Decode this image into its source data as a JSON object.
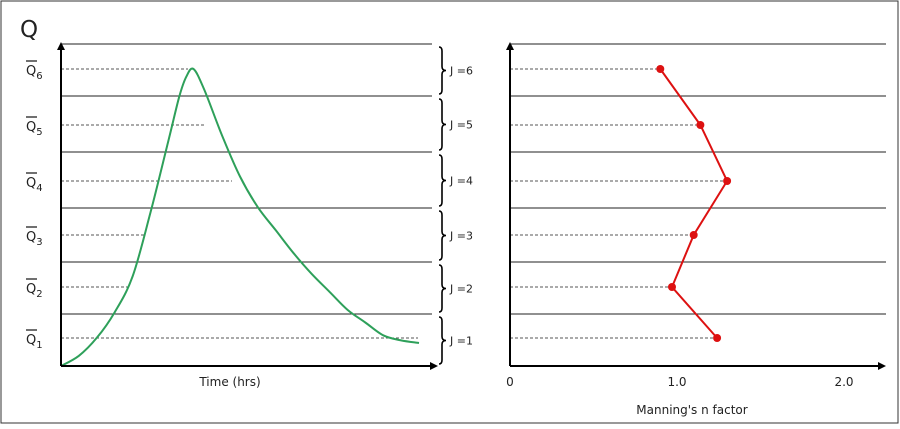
{
  "title": "Q",
  "colors": {
    "hydrograph": "#2ea05a",
    "manning": "#dd1111",
    "axis": "#000000",
    "band_line": "#222222",
    "guide_dash": "#555555"
  },
  "left_panel": {
    "xlabel": "Time (hrs)",
    "q_labels": [
      {
        "letter": "Q",
        "sub": "1"
      },
      {
        "letter": "Q",
        "sub": "2"
      },
      {
        "letter": "Q",
        "sub": "3"
      },
      {
        "letter": "Q",
        "sub": "4"
      },
      {
        "letter": "Q",
        "sub": "5"
      },
      {
        "letter": "Q",
        "sub": "6"
      }
    ],
    "j_labels": [
      "J =1",
      "J =2",
      "J =3",
      "J =4",
      "J =5",
      "J =6"
    ]
  },
  "chart_data": [
    {
      "type": "line",
      "xlabel": "Time (hrs)",
      "ylabel": "Q",
      "series": [
        {
          "x": [
            0,
            0.05,
            0.1,
            0.15,
            0.2,
            0.25,
            0.3,
            0.33,
            0.35,
            0.37,
            0.4,
            0.45,
            0.5,
            0.55,
            0.6,
            0.65,
            0.7,
            0.75,
            0.8,
            0.85,
            0.9,
            0.95,
            1.0
          ],
          "y": [
            0,
            0.2,
            0.55,
            1.05,
            1.75,
            3.0,
            4.4,
            5.25,
            5.65,
            5.8,
            5.4,
            4.5,
            3.7,
            3.1,
            2.65,
            2.2,
            1.8,
            1.45,
            1.1,
            0.85,
            0.6,
            0.5,
            0.45
          ]
        }
      ]
    },
    {
      "type": "line",
      "xlabel": "Manning's n factor",
      "xticks": [
        "0",
        "1.0",
        "2.0"
      ],
      "xlim": [
        0,
        2.2
      ],
      "series": [
        {
          "x": [
            1.24,
            0.97,
            1.1,
            1.3,
            1.14,
            0.9
          ],
          "y": [
            1,
            2,
            3,
            4,
            5,
            6
          ]
        }
      ]
    }
  ]
}
